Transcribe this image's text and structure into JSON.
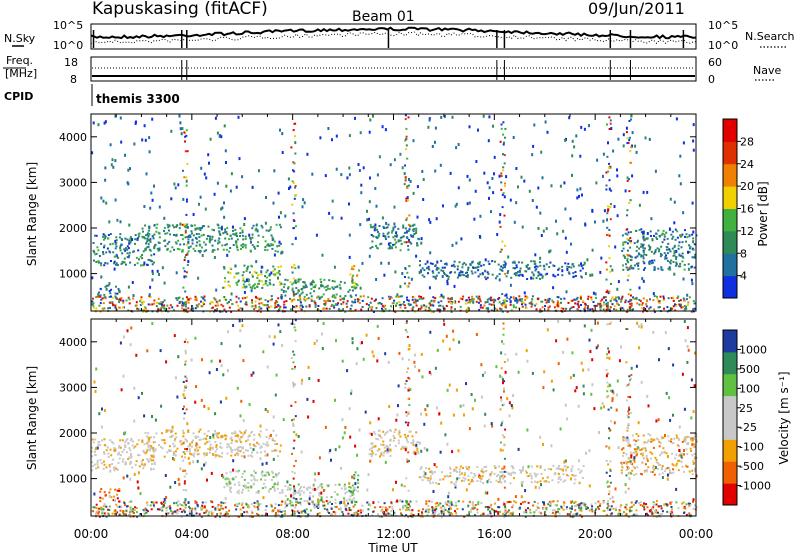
{
  "header": {
    "station": "Kapuskasing (fitACF)",
    "beam": "Beam 01",
    "date": "09/Jun/2011"
  },
  "noise_panel": {
    "left_label": "N.Sky",
    "right_label": "N.Search",
    "left_ticks": [
      "10^5",
      "10^0"
    ],
    "right_ticks": [
      "10^5",
      "10^0"
    ]
  },
  "freq_panel": {
    "left_label_line1": "Freq.",
    "left_label_line2": "[MHz]",
    "right_label": "Nave",
    "left_ticks": [
      "18",
      "8"
    ],
    "right_ticks": [
      "60",
      "0"
    ]
  },
  "cpid": {
    "label": "CPID",
    "program": "themis 3300"
  },
  "colors": {
    "power_scale": [
      "#1030e0",
      "#2070a0",
      "#2e8b57",
      "#40b040",
      "#f0d000",
      "#f08000",
      "#e03000",
      "#e00000"
    ],
    "velocity_scale": [
      "#e00000",
      "#f06000",
      "#f0a000",
      "#c8c8c8",
      "#c8c8c8",
      "#60c040",
      "#2e8b57",
      "#1e3ca0"
    ]
  },
  "chart_data": [
    {
      "type": "heatmap",
      "name": "power",
      "ylabel": "Slant Range [km]",
      "xlabel": "",
      "ylim": [
        180,
        4500
      ],
      "xlim_hours": [
        0,
        24
      ],
      "yticks": [
        "4000",
        "3000",
        "2000",
        "1000"
      ],
      "colorbar": {
        "label": "Power [dB]",
        "range": [
          0,
          32
        ],
        "ticks": [
          "28",
          "24",
          "20",
          "16",
          "12",
          "8",
          "4"
        ]
      },
      "features": [
        {
          "t": [
            0.0,
            2.5
          ],
          "r": [
            1200,
            1900
          ],
          "level": 0.25,
          "desc": "band"
        },
        {
          "t": [
            2.0,
            7.5
          ],
          "r": [
            1500,
            2100
          ],
          "level": 0.3
        },
        {
          "t": [
            0.2,
            1.1
          ],
          "r": [
            500,
            800
          ],
          "level": 0.2
        },
        {
          "t": [
            5.2,
            7.5
          ],
          "r": [
            700,
            1200
          ],
          "level": 0.4
        },
        {
          "t": [
            7.5,
            10.5
          ],
          "r": [
            500,
            900
          ],
          "level": 0.35
        },
        {
          "t": [
            10.2,
            10.6
          ],
          "r": [
            700,
            1200
          ],
          "level": 0.55
        },
        {
          "t": [
            11.0,
            13.0
          ],
          "r": [
            1500,
            2100
          ],
          "level": 0.25
        },
        {
          "t": [
            13.0,
            19.5
          ],
          "r": [
            900,
            1300
          ],
          "level": 0.2
        },
        {
          "t": [
            21.0,
            24.0
          ],
          "r": [
            1100,
            2000
          ],
          "level": 0.25
        }
      ]
    },
    {
      "type": "heatmap",
      "name": "velocity",
      "ylabel": "Slant Range [km]",
      "xlabel": "Time UT",
      "ylim": [
        180,
        4500
      ],
      "xlim_hours": [
        0,
        24
      ],
      "yticks": [
        "4000",
        "3000",
        "2000",
        "1000"
      ],
      "xticks": [
        "00:00",
        "04:00",
        "08:00",
        "12:00",
        "16:00",
        "20:00",
        "00:00"
      ],
      "colorbar": {
        "label": "Velocity [m s⁻¹]",
        "ticks": [
          "1000",
          "500",
          "100",
          "25",
          "-25",
          "-100",
          "-500",
          "-1000"
        ]
      },
      "features": [
        {
          "t": [
            0.0,
            2.5
          ],
          "r": [
            1200,
            1900
          ],
          "level": 0.45
        },
        {
          "t": [
            2.0,
            7.5
          ],
          "r": [
            1500,
            2100
          ],
          "level": 0.45
        },
        {
          "t": [
            0.3,
            1.1
          ],
          "r": [
            500,
            800
          ],
          "level": 0.2
        },
        {
          "t": [
            5.2,
            7.5
          ],
          "r": [
            700,
            1200
          ],
          "level": 0.55
        },
        {
          "t": [
            7.5,
            10.5
          ],
          "r": [
            500,
            900
          ],
          "level": 0.55
        },
        {
          "t": [
            10.2,
            10.6
          ],
          "r": [
            700,
            1200
          ],
          "level": 0.7
        },
        {
          "t": [
            11.0,
            13.0
          ],
          "r": [
            1500,
            2100
          ],
          "level": 0.45
        },
        {
          "t": [
            13.0,
            19.5
          ],
          "r": [
            900,
            1300
          ],
          "level": 0.45
        },
        {
          "t": [
            21.0,
            24.0
          ],
          "r": [
            1100,
            2000
          ],
          "level": 0.35
        }
      ]
    }
  ]
}
